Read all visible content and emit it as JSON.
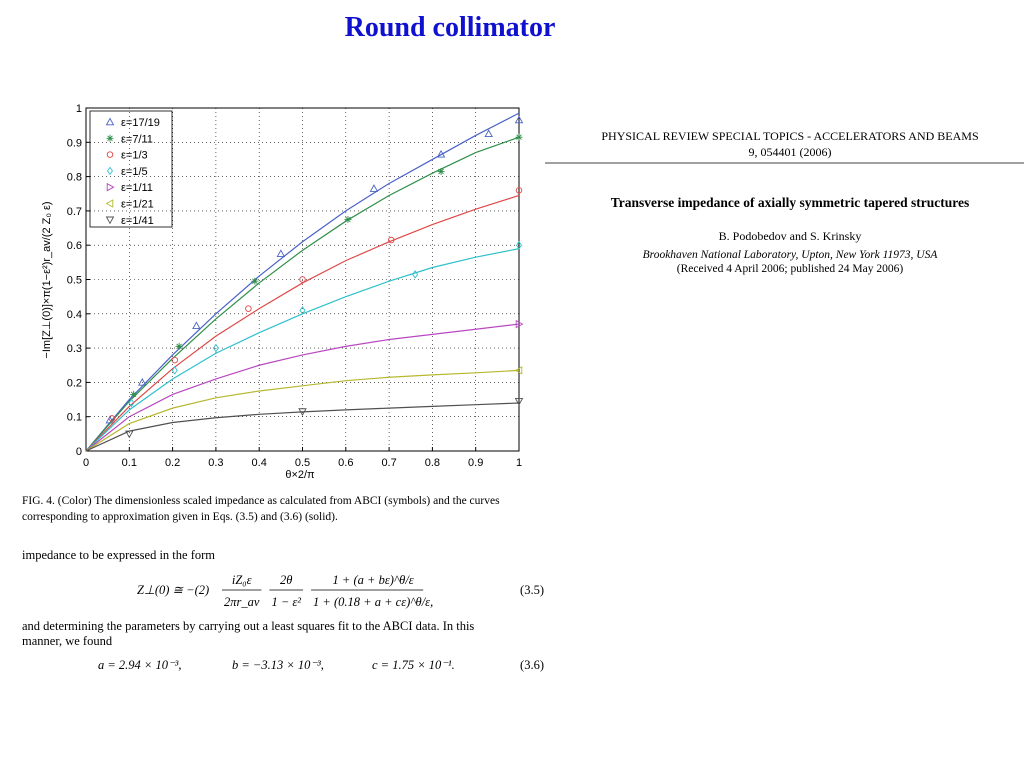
{
  "slide_title": "Round collimator",
  "chart_data": {
    "type": "scatter-curve",
    "x_label": "θ×2/π",
    "y_label": "−Im[Z⊥(0)]×π(1−ε²)r_av/(2 Z₀ ε)",
    "xlim": [
      0,
      1
    ],
    "ylim": [
      0,
      1
    ],
    "xticks": [
      0,
      0.1,
      0.2,
      0.3,
      0.4,
      0.5,
      0.6,
      0.7,
      0.8,
      0.9,
      1
    ],
    "yticks": [
      0,
      0.1,
      0.2,
      0.3,
      0.4,
      0.5,
      0.6,
      0.7,
      0.8,
      0.9,
      1
    ],
    "grid": true,
    "legend": "upper-left",
    "curve_x": [
      0,
      0.1,
      0.2,
      0.3,
      0.4,
      0.5,
      0.6,
      0.7,
      0.8,
      0.9,
      1
    ],
    "series": [
      {
        "name": "ε=17/19",
        "color": "#4a62c8",
        "marker": "triangle-up",
        "x": [
          0.055,
          0.13,
          0.255,
          0.45,
          0.665,
          0.82,
          0.93,
          1.0
        ],
        "values": [
          0.09,
          0.2,
          0.365,
          0.575,
          0.765,
          0.865,
          0.925,
          0.965
        ],
        "curve_values": [
          0,
          0.15,
          0.28,
          0.4,
          0.51,
          0.61,
          0.7,
          0.78,
          0.85,
          0.92,
          0.985
        ]
      },
      {
        "name": "ε=7/11",
        "color": "#2f8f4a",
        "marker": "star",
        "x": [
          0.11,
          0.215,
          0.39,
          0.605,
          0.82,
          1.0
        ],
        "values": [
          0.165,
          0.305,
          0.495,
          0.675,
          0.815,
          0.915
        ],
        "curve_values": [
          0,
          0.145,
          0.27,
          0.385,
          0.49,
          0.585,
          0.67,
          0.745,
          0.81,
          0.87,
          0.915
        ]
      },
      {
        "name": "ε=1/3",
        "color": "#e04848",
        "marker": "circle",
        "x": [
          0.06,
          0.205,
          0.375,
          0.5,
          0.705,
          1.0
        ],
        "values": [
          0.095,
          0.265,
          0.415,
          0.5,
          0.615,
          0.76
        ],
        "curve_values": [
          0,
          0.13,
          0.24,
          0.335,
          0.415,
          0.49,
          0.555,
          0.61,
          0.66,
          0.705,
          0.745
        ]
      },
      {
        "name": "ε=1/5",
        "color": "#2ec0cc",
        "marker": "diamond",
        "x": [
          0.105,
          0.205,
          0.3,
          0.5,
          0.76,
          1.0
        ],
        "values": [
          0.14,
          0.235,
          0.3,
          0.41,
          0.515,
          0.6
        ],
        "curve_values": [
          0,
          0.12,
          0.21,
          0.285,
          0.345,
          0.4,
          0.45,
          0.495,
          0.535,
          0.565,
          0.59
        ]
      },
      {
        "name": "ε=1/11",
        "color": "#b848c0",
        "marker": "triangle-right",
        "x": [
          1.0
        ],
        "values": [
          0.37
        ],
        "curve_values": [
          0,
          0.1,
          0.165,
          0.21,
          0.25,
          0.28,
          0.305,
          0.325,
          0.34,
          0.355,
          0.37
        ]
      },
      {
        "name": "ε=1/21",
        "color": "#b8b830",
        "marker": "triangle-left",
        "x": [
          1.0
        ],
        "values": [
          0.235
        ],
        "curve_values": [
          0,
          0.08,
          0.125,
          0.155,
          0.175,
          0.19,
          0.205,
          0.215,
          0.222,
          0.228,
          0.235
        ]
      },
      {
        "name": "ε=1/41",
        "color": "#505050",
        "marker": "triangle-down",
        "x": [
          0.1,
          0.5,
          1.0
        ],
        "values": [
          0.05,
          0.115,
          0.145
        ],
        "curve_values": [
          0,
          0.058,
          0.083,
          0.097,
          0.107,
          0.114,
          0.12,
          0.125,
          0.13,
          0.135,
          0.14
        ]
      }
    ]
  },
  "caption": [
    "FIG. 4. (Color) The dimensionless scaled impedance as calculated from ABCI (symbols) and the curves",
    "corresponding to approximation given in Eqs. (3.5) and (3.6) (solid)."
  ],
  "text_1": "impedance to be expressed in the form",
  "equation_1": {
    "lhs": "Z⊥(0) ≅ −(2)",
    "fractions": [
      {
        "num": "iZ₀ε",
        "den": "2πr_av"
      },
      {
        "num": "2θ",
        "den": "1 − ε²"
      },
      {
        "num": "1 + (a + bε)^θ/ε",
        "den": "1 + (0.18 + a + cε)^θ/ε,"
      }
    ],
    "tag": "(3.5)"
  },
  "text_2": [
    "and determining the parameters by carrying out a least squares fit to the ABCI data. In this",
    "manner, we found"
  ],
  "equation_2": {
    "parts": [
      "a = 2.94 × 10⁻³,",
      "b = −3.13 × 10⁻³,",
      "c = 1.75 × 10⁻¹."
    ],
    "tag": "(3.6)"
  },
  "paper": {
    "journal": "PHYSICAL REVIEW SPECIAL TOPICS - ACCELERATORS AND BEAMS",
    "volume": "9, 054401 (2006)",
    "title": "Transverse impedance of axially symmetric tapered structures",
    "authors": "B. Podobedov and S. Krinsky",
    "affiliation": "Brookhaven National Laboratory, Upton, New York 11973, USA",
    "received": "(Received 4 April 2006; published 24 May 2006)"
  }
}
